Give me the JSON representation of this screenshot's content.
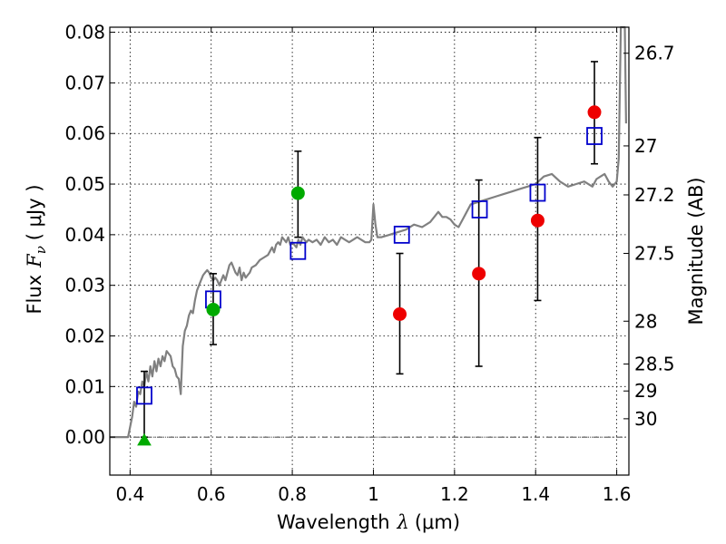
{
  "chart_data": {
    "type": "scatter",
    "xlabel": "Wavelength  λ (μm)",
    "ylabel": "Flux  F_ν  ( μJy )",
    "ylabel_parts": {
      "prefix": "Flux",
      "symbol": "F",
      "sub": "ν",
      "unit": "( μJy )"
    },
    "xlabel_parts": {
      "prefix": "Wavelength",
      "symbol": "λ",
      "unit": "(μm)"
    },
    "y2label": "Magnitude (AB)",
    "xlim": [
      0.35,
      1.63
    ],
    "ylim": [
      -0.0075,
      0.081
    ],
    "grid": true,
    "xticks": [
      {
        "v": 0.4,
        "label": "0.4"
      },
      {
        "v": 0.6,
        "label": "0.6"
      },
      {
        "v": 0.8,
        "label": "0.8"
      },
      {
        "v": 1.0,
        "label": "1"
      },
      {
        "v": 1.2,
        "label": "1.2"
      },
      {
        "v": 1.4,
        "label": "1.4"
      },
      {
        "v": 1.6,
        "label": "1.6"
      }
    ],
    "yticks": [
      {
        "v": 0.0,
        "label": "0.00"
      },
      {
        "v": 0.01,
        "label": "0.01"
      },
      {
        "v": 0.02,
        "label": "0.02"
      },
      {
        "v": 0.03,
        "label": "0.03"
      },
      {
        "v": 0.04,
        "label": "0.04"
      },
      {
        "v": 0.05,
        "label": "0.05"
      },
      {
        "v": 0.06,
        "label": "0.06"
      },
      {
        "v": 0.07,
        "label": "0.07"
      },
      {
        "v": 0.08,
        "label": "0.08"
      }
    ],
    "magnitude_ticks": [
      {
        "mag": 26.7,
        "label": "26.7"
      },
      {
        "mag": 27.0,
        "label": "27"
      },
      {
        "mag": 27.2,
        "label": "27.2"
      },
      {
        "mag": 27.5,
        "label": "27.5"
      },
      {
        "mag": 28.0,
        "label": "28"
      },
      {
        "mag": 28.5,
        "label": "28.5"
      },
      {
        "mag": 29.0,
        "label": "29"
      },
      {
        "mag": 30.0,
        "label": "30"
      }
    ],
    "sed_color": "#808080",
    "sed_model": [
      [
        0.35,
        0.0
      ],
      [
        0.395,
        0.0
      ],
      [
        0.405,
        0.004
      ],
      [
        0.41,
        0.007
      ],
      [
        0.415,
        0.006
      ],
      [
        0.42,
        0.009
      ],
      [
        0.425,
        0.0085
      ],
      [
        0.43,
        0.011
      ],
      [
        0.435,
        0.01
      ],
      [
        0.44,
        0.013
      ],
      [
        0.445,
        0.011
      ],
      [
        0.45,
        0.014
      ],
      [
        0.455,
        0.012
      ],
      [
        0.46,
        0.015
      ],
      [
        0.465,
        0.013
      ],
      [
        0.47,
        0.0155
      ],
      [
        0.475,
        0.014
      ],
      [
        0.48,
        0.016
      ],
      [
        0.485,
        0.015
      ],
      [
        0.49,
        0.017
      ],
      [
        0.495,
        0.0165
      ],
      [
        0.5,
        0.016
      ],
      [
        0.505,
        0.014
      ],
      [
        0.51,
        0.0135
      ],
      [
        0.515,
        0.012
      ],
      [
        0.52,
        0.0115
      ],
      [
        0.525,
        0.0085
      ],
      [
        0.53,
        0.018
      ],
      [
        0.535,
        0.021
      ],
      [
        0.54,
        0.022
      ],
      [
        0.545,
        0.024
      ],
      [
        0.55,
        0.025
      ],
      [
        0.555,
        0.0245
      ],
      [
        0.56,
        0.027
      ],
      [
        0.565,
        0.029
      ],
      [
        0.57,
        0.03
      ],
      [
        0.575,
        0.031
      ],
      [
        0.58,
        0.032
      ],
      [
        0.585,
        0.0325
      ],
      [
        0.59,
        0.033
      ],
      [
        0.595,
        0.0325
      ],
      [
        0.6,
        0.0315
      ],
      [
        0.605,
        0.031
      ],
      [
        0.61,
        0.0315
      ],
      [
        0.615,
        0.031
      ],
      [
        0.62,
        0.03
      ],
      [
        0.625,
        0.031
      ],
      [
        0.63,
        0.032
      ],
      [
        0.635,
        0.031
      ],
      [
        0.64,
        0.0325
      ],
      [
        0.645,
        0.034
      ],
      [
        0.65,
        0.0345
      ],
      [
        0.655,
        0.0335
      ],
      [
        0.66,
        0.0325
      ],
      [
        0.665,
        0.032
      ],
      [
        0.67,
        0.0335
      ],
      [
        0.675,
        0.031
      ],
      [
        0.68,
        0.0325
      ],
      [
        0.685,
        0.0315
      ],
      [
        0.69,
        0.032
      ],
      [
        0.695,
        0.0325
      ],
      [
        0.7,
        0.0335
      ],
      [
        0.71,
        0.034
      ],
      [
        0.72,
        0.035
      ],
      [
        0.73,
        0.0355
      ],
      [
        0.74,
        0.036
      ],
      [
        0.75,
        0.0375
      ],
      [
        0.755,
        0.0365
      ],
      [
        0.76,
        0.038
      ],
      [
        0.765,
        0.0385
      ],
      [
        0.77,
        0.038
      ],
      [
        0.775,
        0.0395
      ],
      [
        0.78,
        0.039
      ],
      [
        0.785,
        0.0385
      ],
      [
        0.79,
        0.0395
      ],
      [
        0.795,
        0.038
      ],
      [
        0.8,
        0.0385
      ],
      [
        0.805,
        0.038
      ],
      [
        0.81,
        0.0375
      ],
      [
        0.815,
        0.039
      ],
      [
        0.82,
        0.038
      ],
      [
        0.825,
        0.0395
      ],
      [
        0.83,
        0.039
      ],
      [
        0.835,
        0.0385
      ],
      [
        0.84,
        0.039
      ],
      [
        0.85,
        0.0385
      ],
      [
        0.86,
        0.039
      ],
      [
        0.87,
        0.038
      ],
      [
        0.88,
        0.0395
      ],
      [
        0.89,
        0.0385
      ],
      [
        0.9,
        0.039
      ],
      [
        0.91,
        0.038
      ],
      [
        0.92,
        0.0395
      ],
      [
        0.93,
        0.039
      ],
      [
        0.94,
        0.0385
      ],
      [
        0.95,
        0.039
      ],
      [
        0.96,
        0.0395
      ],
      [
        0.97,
        0.039
      ],
      [
        0.98,
        0.0385
      ],
      [
        0.99,
        0.0385
      ],
      [
        0.995,
        0.039
      ],
      [
        1.0,
        0.046
      ],
      [
        1.005,
        0.042
      ],
      [
        1.01,
        0.0395
      ],
      [
        1.02,
        0.0395
      ],
      [
        1.04,
        0.04
      ],
      [
        1.06,
        0.0405
      ],
      [
        1.08,
        0.041
      ],
      [
        1.1,
        0.042
      ],
      [
        1.12,
        0.0415
      ],
      [
        1.14,
        0.0425
      ],
      [
        1.16,
        0.0445
      ],
      [
        1.17,
        0.0435
      ],
      [
        1.18,
        0.0435
      ],
      [
        1.19,
        0.043
      ],
      [
        1.2,
        0.042
      ],
      [
        1.21,
        0.0415
      ],
      [
        1.22,
        0.043
      ],
      [
        1.23,
        0.0445
      ],
      [
        1.24,
        0.046
      ],
      [
        1.26,
        0.0465
      ],
      [
        1.28,
        0.047
      ],
      [
        1.3,
        0.0475
      ],
      [
        1.32,
        0.048
      ],
      [
        1.34,
        0.0485
      ],
      [
        1.36,
        0.049
      ],
      [
        1.38,
        0.0495
      ],
      [
        1.4,
        0.05
      ],
      [
        1.42,
        0.0515
      ],
      [
        1.44,
        0.052
      ],
      [
        1.46,
        0.0505
      ],
      [
        1.48,
        0.0495
      ],
      [
        1.5,
        0.05
      ],
      [
        1.52,
        0.0505
      ],
      [
        1.54,
        0.0495
      ],
      [
        1.55,
        0.051
      ],
      [
        1.56,
        0.0515
      ],
      [
        1.57,
        0.052
      ],
      [
        1.58,
        0.0505
      ],
      [
        1.59,
        0.0495
      ],
      [
        1.6,
        0.0505
      ],
      [
        1.605,
        0.055
      ],
      [
        1.61,
        0.081
      ],
      [
        1.62,
        0.081
      ],
      [
        1.623,
        0.062
      ]
    ],
    "series": [
      {
        "marker": "square",
        "color": "#0000cc",
        "points": [
          {
            "x": 0.435,
            "y": 0.0082
          },
          {
            "x": 0.605,
            "y": 0.0272
          },
          {
            "x": 0.814,
            "y": 0.0368
          },
          {
            "x": 1.07,
            "y": 0.04
          },
          {
            "x": 1.262,
            "y": 0.045
          },
          {
            "x": 1.405,
            "y": 0.0483
          },
          {
            "x": 1.545,
            "y": 0.0595
          }
        ]
      },
      {
        "marker": "circle",
        "color": "#00aa00",
        "points": [
          {
            "x": 0.605,
            "y": 0.0252,
            "yerr": [
              0.0183,
              0.0323
            ]
          },
          {
            "x": 0.814,
            "y": 0.0482,
            "yerr": [
              0.0395,
              0.0565
            ]
          }
        ]
      },
      {
        "marker": "triangle",
        "color": "#00aa00",
        "points": [
          {
            "x": 0.435,
            "y": -0.0005,
            "yerr": [
              0.0,
              0.013
            ]
          }
        ]
      },
      {
        "marker": "circle",
        "color": "#ee0000",
        "points": [
          {
            "x": 1.065,
            "y": 0.0243,
            "yerr": [
              0.0125,
              0.0363
            ]
          },
          {
            "x": 1.26,
            "y": 0.0323,
            "yerr": [
              0.014,
              0.0508
            ]
          },
          {
            "x": 1.405,
            "y": 0.0428,
            "yerr": [
              0.027,
              0.0592
            ]
          },
          {
            "x": 1.545,
            "y": 0.0642,
            "yerr": [
              0.054,
              0.0742
            ]
          }
        ]
      }
    ]
  }
}
